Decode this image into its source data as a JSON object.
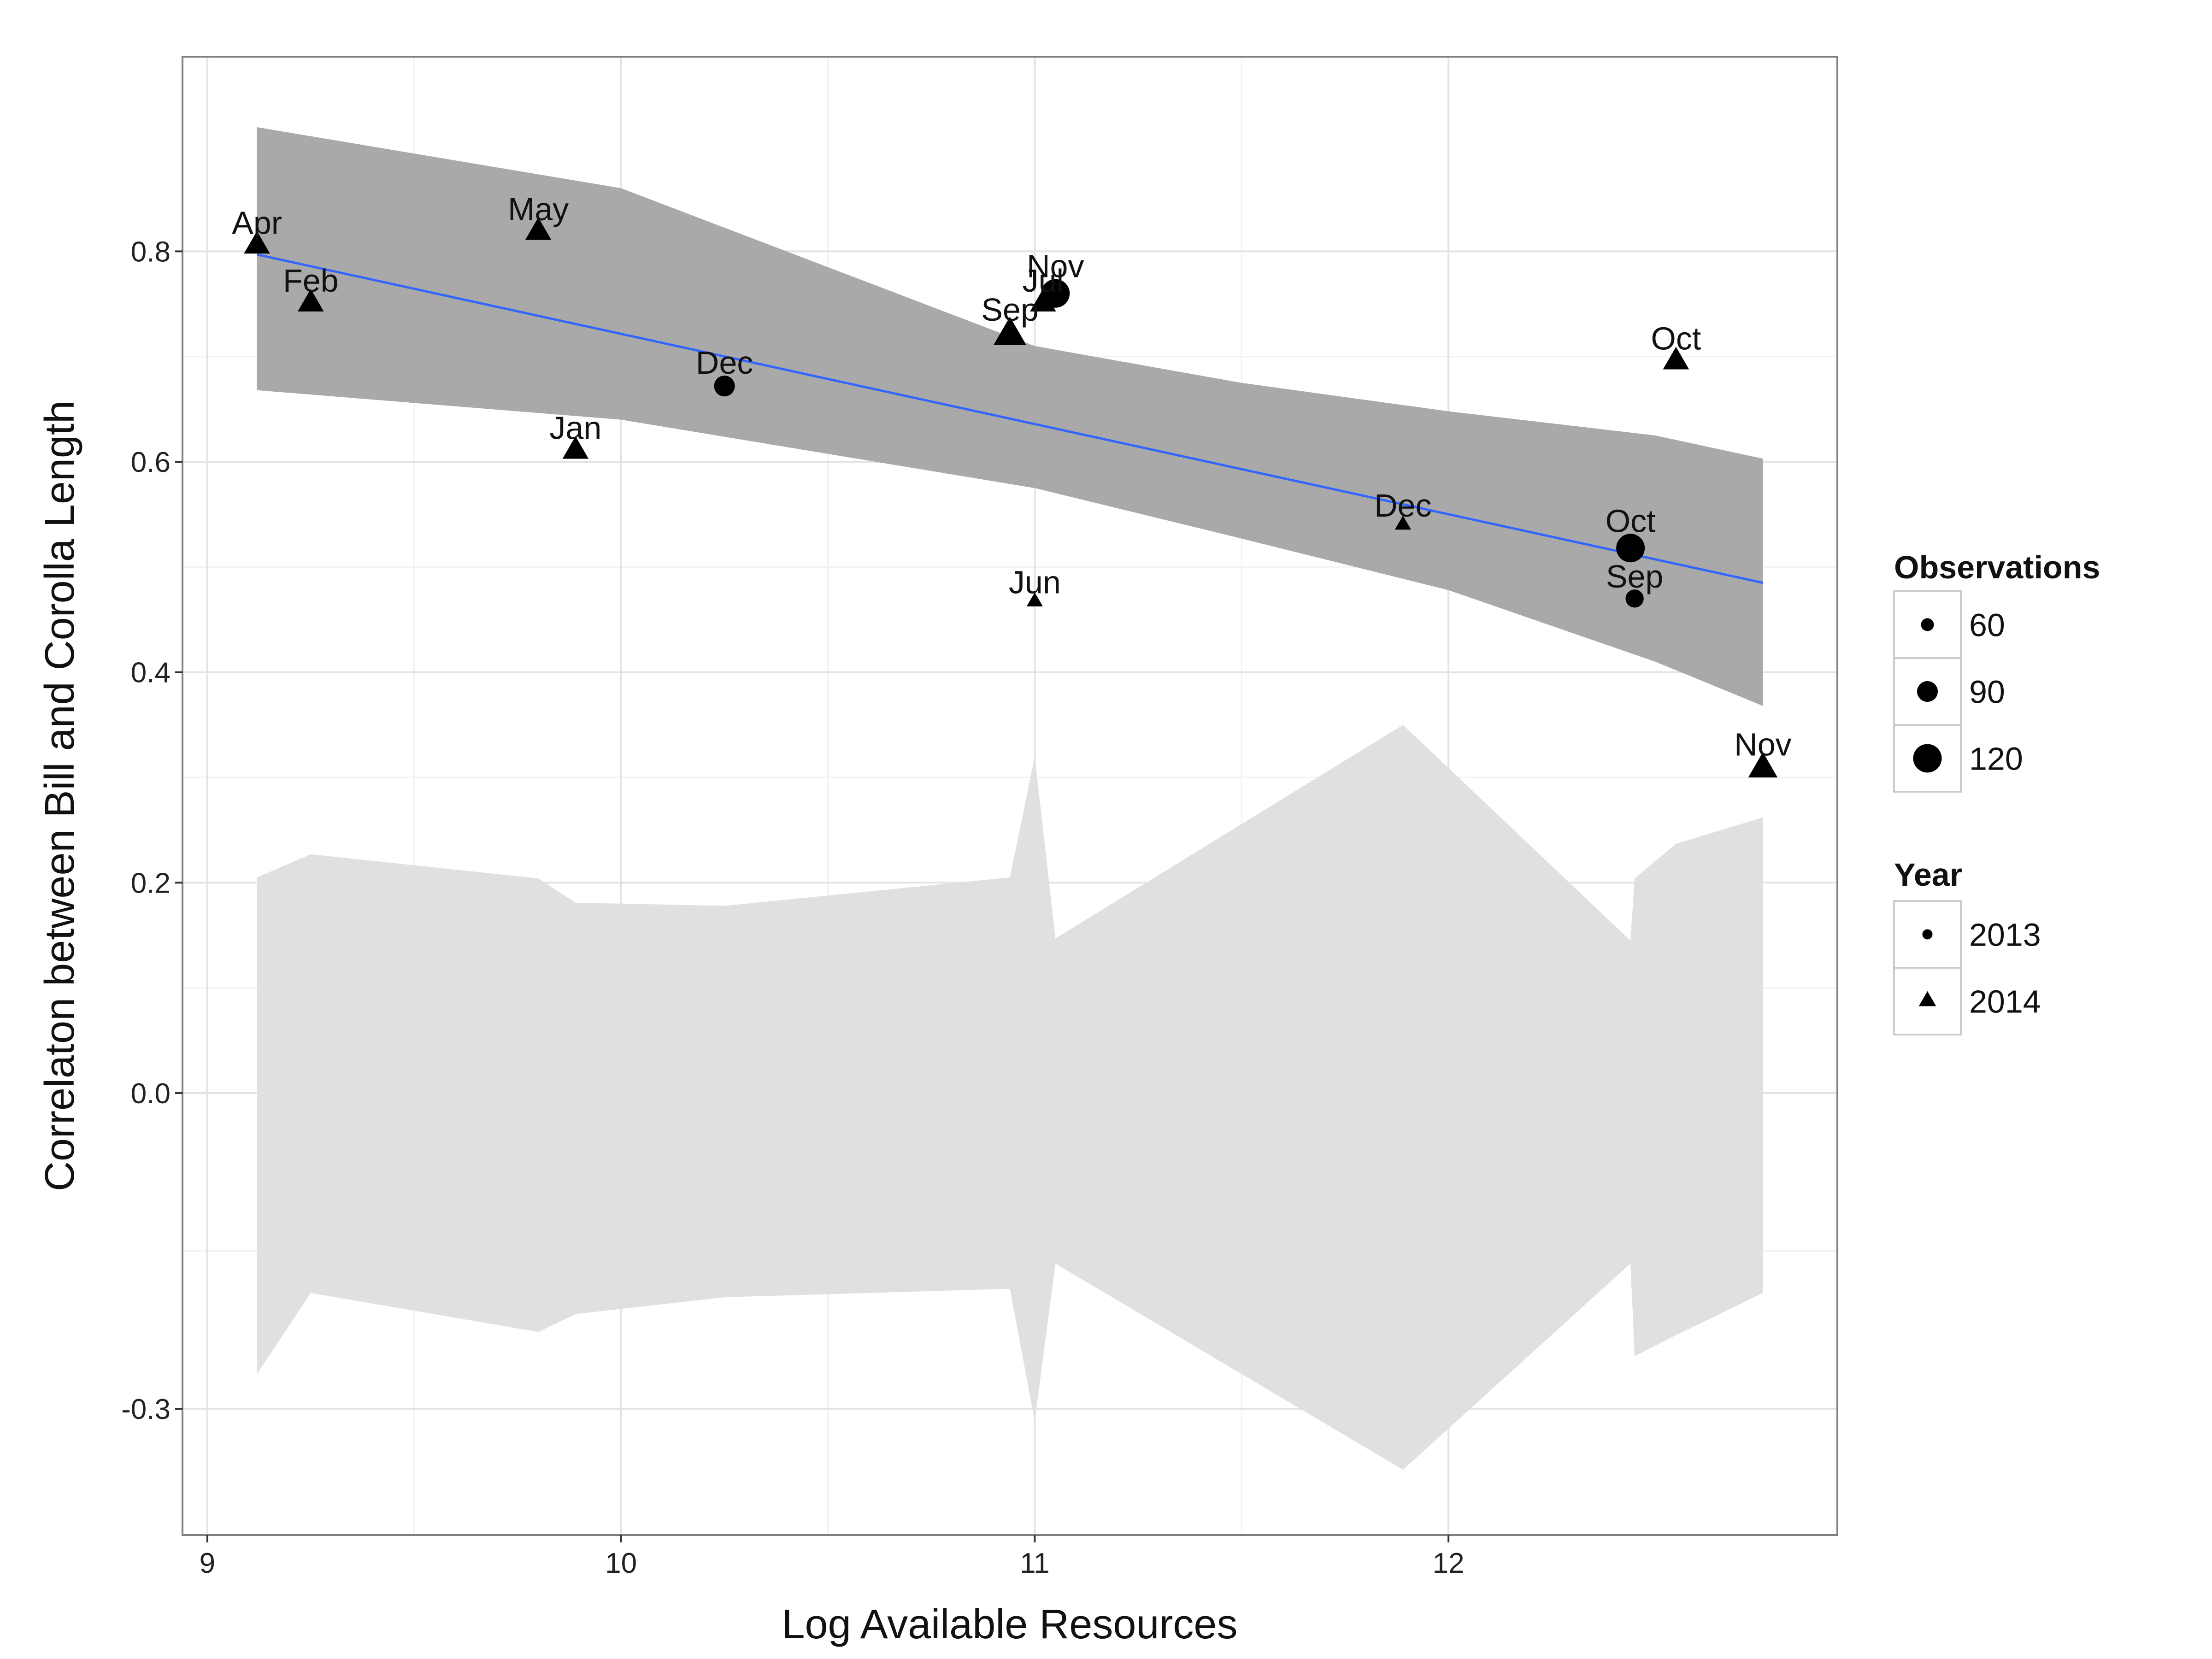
{
  "chart_data": {
    "type": "scatter",
    "xlabel": "Log Available Resources",
    "ylabel": "Correlaton between Bill and Corolla Length",
    "xlim": [
      8.94,
      12.94
    ],
    "ylim": [
      -0.42,
      0.985
    ],
    "x_ticks": [
      9,
      10,
      11,
      12
    ],
    "x_tick_labels": [
      "9",
      "10",
      "11",
      "12"
    ],
    "y_ticks": [
      -0.3,
      0.0,
      0.2,
      0.4,
      0.6,
      0.8
    ],
    "y_tick_labels": [
      "-0.3",
      "0.0",
      "0.2",
      "0.4",
      "0.6",
      "0.8"
    ],
    "grid": true,
    "legend_position": "right",
    "points": [
      {
        "label": "Apr",
        "x": 9.12,
        "y": 0.805,
        "year": "2014",
        "observations": 90
      },
      {
        "label": "Feb",
        "x": 9.25,
        "y": 0.75,
        "year": "2014",
        "observations": 90
      },
      {
        "label": "May",
        "x": 9.8,
        "y": 0.818,
        "year": "2014",
        "observations": 90
      },
      {
        "label": "Jan",
        "x": 9.89,
        "y": 0.61,
        "year": "2014",
        "observations": 90
      },
      {
        "label": "Dec",
        "x": 10.25,
        "y": 0.672,
        "year": "2013",
        "observations": 90
      },
      {
        "label": "Sep",
        "x": 10.94,
        "y": 0.72,
        "year": "2014",
        "observations": 110
      },
      {
        "label": "Jul",
        "x": 11.02,
        "y": 0.75,
        "year": "2014",
        "observations": 90
      },
      {
        "label": "Nov",
        "x": 11.05,
        "y": 0.76,
        "year": "2013",
        "observations": 120
      },
      {
        "label": "Jun",
        "x": 11.0,
        "y": 0.467,
        "year": "2014",
        "observations": 60
      },
      {
        "label": "Dec",
        "x": 11.89,
        "y": 0.54,
        "year": "2014",
        "observations": 60
      },
      {
        "label": "Oct",
        "x": 12.44,
        "y": 0.518,
        "year": "2013",
        "observations": 120
      },
      {
        "label": "Sep",
        "x": 12.45,
        "y": 0.47,
        "year": "2013",
        "observations": 80
      },
      {
        "label": "Oct",
        "x": 12.55,
        "y": 0.695,
        "year": "2014",
        "observations": 90
      },
      {
        "label": "Nov",
        "x": 12.76,
        "y": 0.308,
        "year": "2014",
        "observations": 100
      }
    ],
    "trend_line": {
      "x": [
        9.12,
        12.76
      ],
      "y": [
        0.797,
        0.485
      ],
      "color": "#3366ff"
    },
    "confidence_band": {
      "x": [
        9.12,
        10.0,
        11.0,
        11.5,
        12.0,
        12.5,
        12.76
      ],
      "upper": [
        0.918,
        0.86,
        0.71,
        0.675,
        0.648,
        0.625,
        0.603
      ],
      "lower": [
        0.668,
        0.64,
        0.575,
        0.527,
        0.478,
        0.41,
        0.368
      ],
      "color": "#a9a9a9"
    },
    "null_band": {
      "x": [
        9.12,
        9.25,
        9.8,
        9.89,
        10.25,
        10.94,
        11.0,
        11.05,
        11.89,
        12.44,
        12.45,
        12.55,
        12.76
      ],
      "upper": [
        0.205,
        0.227,
        0.204,
        0.181,
        0.178,
        0.205,
        0.32,
        0.147,
        0.35,
        0.145,
        0.204,
        0.237,
        0.262
      ],
      "lower": [
        -0.267,
        -0.19,
        -0.227,
        -0.21,
        -0.194,
        -0.186,
        -0.312,
        -0.162,
        -0.358,
        -0.162,
        -0.25,
        -0.23,
        -0.19
      ],
      "color": "#e0e0e0"
    },
    "legend": {
      "observations": {
        "title": "Observations",
        "items": [
          {
            "label": "60",
            "size": 60
          },
          {
            "label": "90",
            "size": 90
          },
          {
            "label": "120",
            "size": 120
          }
        ]
      },
      "year": {
        "title": "Year",
        "items": [
          {
            "label": "2013",
            "shape": "circle"
          },
          {
            "label": "2014",
            "shape": "triangle"
          }
        ]
      }
    }
  }
}
